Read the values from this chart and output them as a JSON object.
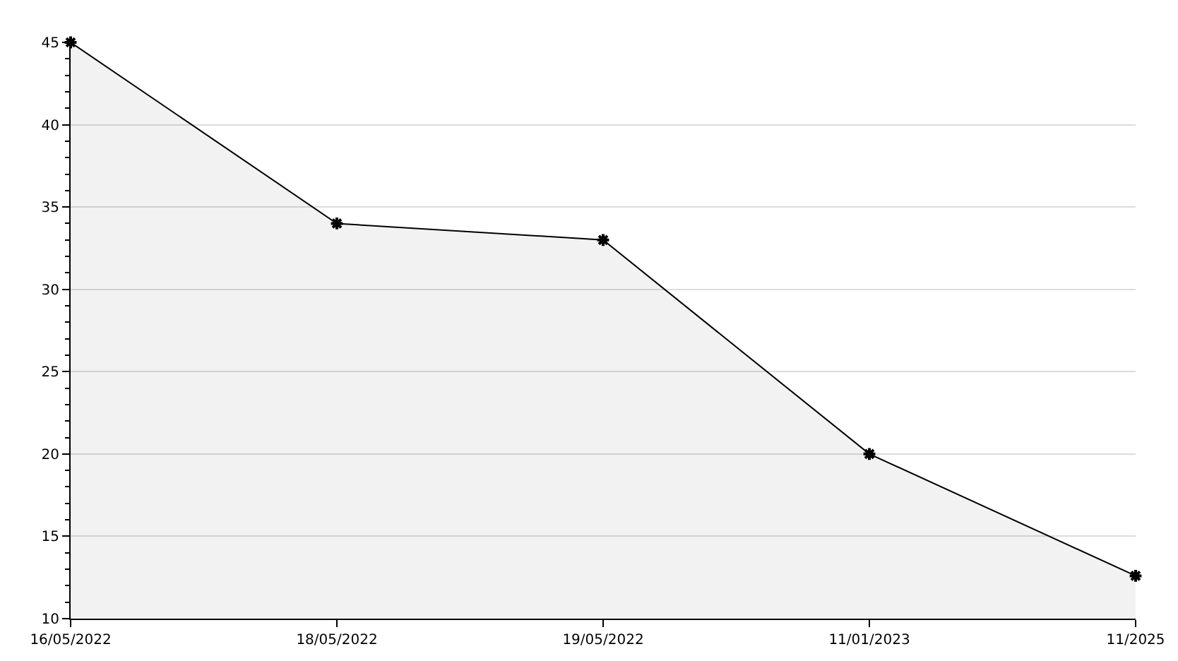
{
  "chart_data": {
    "type": "area",
    "categories": [
      "16/05/2022",
      "18/05/2022",
      "19/05/2022",
      "11/01/2023",
      "11/2025"
    ],
    "series": [
      {
        "color": "#000000",
        "values": [
          45,
          34,
          33,
          20,
          12.6
        ]
      }
    ],
    "ylim": [
      10,
      45
    ],
    "yticks": [
      10,
      15,
      20,
      25,
      30,
      35,
      40,
      45
    ],
    "grid": "y",
    "marker": "cross",
    "line_style": "solid"
  }
}
